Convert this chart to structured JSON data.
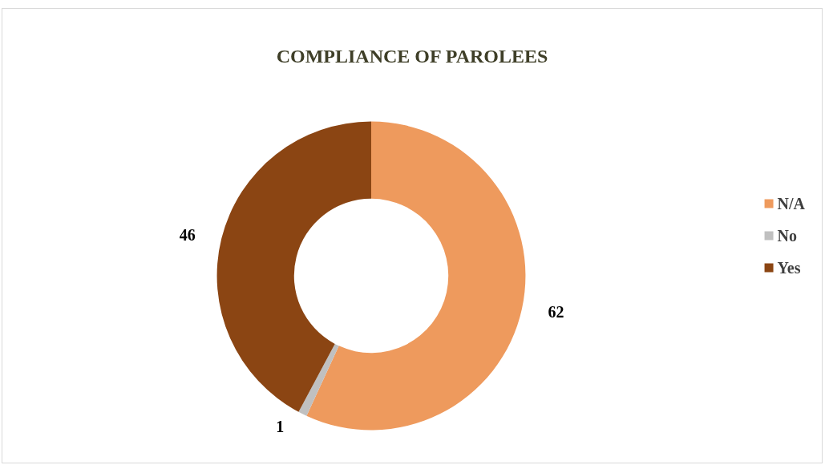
{
  "chart_data": {
    "type": "donut",
    "title": "COMPLIANCE OF PAROLEES",
    "categories": [
      "N/A",
      "No",
      "Yes"
    ],
    "values": [
      62,
      1,
      46
    ],
    "colors": [
      "#ee9a5d",
      "#c0c0c0",
      "#8b4513"
    ],
    "data_labels": true,
    "legend": "right"
  }
}
